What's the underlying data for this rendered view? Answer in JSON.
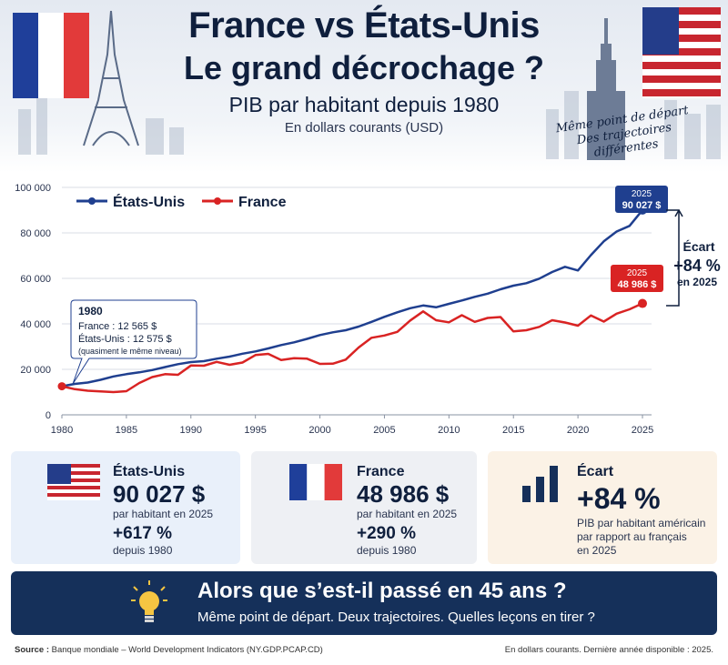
{
  "header": {
    "title_line1": "France vs États-Unis",
    "title_line2": "Le grand décrochage ?",
    "subtitle": "PIB par habitant depuis 1980",
    "unit": "En dollars courants (USD)",
    "hand_note": [
      "Même point de départ",
      "Des trajectoires",
      "différentes"
    ]
  },
  "chart_data": {
    "type": "line",
    "title": "PIB par habitant depuis 1980",
    "ylim": [
      0,
      100000
    ],
    "xlim": [
      1980,
      2025
    ],
    "x_ticks": [
      "1980",
      "1985",
      "1990",
      "1995",
      "2000",
      "2005",
      "2010",
      "2015",
      "2020",
      "2025"
    ],
    "y_ticks": [
      "0",
      "20 000",
      "40 000",
      "60 000",
      "80 000",
      "100 000"
    ],
    "grid": "horizontal",
    "legend_position": "top-left",
    "x": [
      1980,
      1981,
      1982,
      1983,
      1984,
      1985,
      1986,
      1987,
      1988,
      1989,
      1990,
      1991,
      1992,
      1993,
      1994,
      1995,
      1996,
      1997,
      1998,
      1999,
      2000,
      2001,
      2002,
      2003,
      2004,
      2005,
      2006,
      2007,
      2008,
      2009,
      2010,
      2011,
      2012,
      2013,
      2014,
      2015,
      2016,
      2017,
      2018,
      2019,
      2020,
      2021,
      2022,
      2023,
      2024,
      2025
    ],
    "series": [
      {
        "name": "États-Unis",
        "color": "#1f3f8f",
        "values": [
          12575,
          13600,
          14200,
          15400,
          16900,
          17900,
          18700,
          19700,
          21000,
          22300,
          23200,
          23600,
          24700,
          25600,
          26900,
          27900,
          29200,
          30700,
          31900,
          33400,
          35100,
          36300,
          37200,
          38800,
          40900,
          43100,
          45100,
          46900,
          48100,
          47300,
          48800,
          50300,
          51900,
          53300,
          55200,
          56800,
          57900,
          59900,
          62800,
          65100,
          63500,
          70200,
          76300,
          80600,
          83100,
          90027
        ]
      },
      {
        "name": "France",
        "color": "#d92323",
        "values": [
          12565,
          11300,
          10600,
          10300,
          10000,
          10400,
          14000,
          16600,
          17900,
          17600,
          21700,
          21600,
          23300,
          22000,
          23000,
          26300,
          26800,
          24100,
          24900,
          24700,
          22400,
          22500,
          24300,
          29600,
          33900,
          34900,
          36500,
          41500,
          45500,
          41600,
          40700,
          43800,
          40900,
          42600,
          43000,
          36700,
          37200,
          38700,
          41600,
          40600,
          39200,
          43700,
          41000,
          44500,
          46400,
          48986
        ]
      }
    ],
    "annotation_1980": {
      "year": "1980",
      "france": "France : 12 565 $",
      "us": "États-Unis : 12 575 $",
      "note": "(quasiment le même niveau)"
    },
    "end_label_us": {
      "year": "2025",
      "value": "90 027 $"
    },
    "end_label_fr": {
      "year": "2025",
      "value": "48 986 $"
    },
    "gap_label": [
      "Écart",
      "+84 %",
      "en 2025"
    ]
  },
  "cards": {
    "us": {
      "name": "États-Unis",
      "value": "90 027 $",
      "caption": "par habitant en 2025",
      "growth": "+617 %",
      "since": "depuis 1980"
    },
    "fr": {
      "name": "France",
      "value": "48 986 $",
      "caption": "par habitant en 2025",
      "growth": "+290 %",
      "since": "depuis 1980"
    },
    "gap": {
      "name": "Écart",
      "value": "+84 %",
      "caption": [
        "PIB par habitant américain",
        "par rapport au français",
        "en 2025"
      ]
    }
  },
  "banner": {
    "title": "Alors que s’est-il passé en 45 ans ?",
    "subtitle": "Même point de départ. Deux trajectoires. Quelles leçons en tirer ?"
  },
  "footer": {
    "source_label": "Source :",
    "source_text": " Banque mondiale – World Development Indicators (NY.GDP.PCAP.CD)",
    "note": "En dollars courants. Dernière année disponible : 2025."
  },
  "colors": {
    "navy": "#0f1f3d",
    "us_blue": "#1f3f8f",
    "fr_red": "#d92323",
    "banner": "#15305a"
  }
}
